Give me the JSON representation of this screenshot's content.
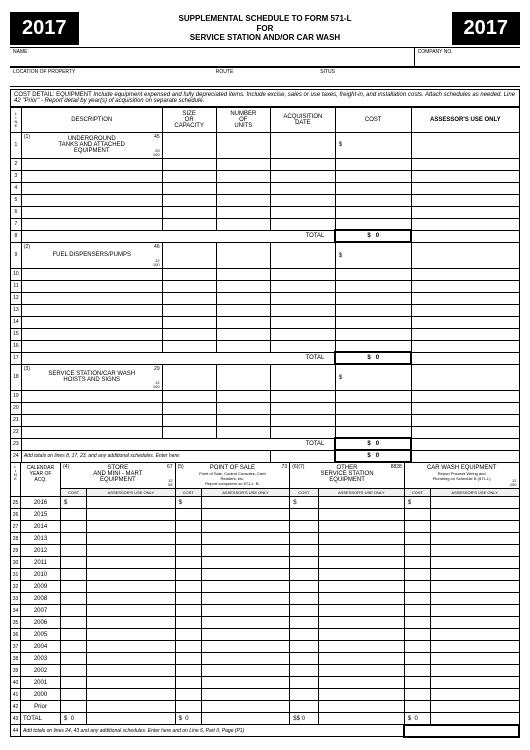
{
  "year": "2017",
  "title_l1": "SUPPLEMENTAL SCHEDULE TO FORM 571-L",
  "title_l2": "FOR",
  "title_l3": "SERVICE STATION AND/OR CAR WASH",
  "labels": {
    "name": "NAME",
    "company_no": "COMPANY NO.",
    "location": "LOCATION OF PROPERTY",
    "route": "ROUTE",
    "situs": "SITUS"
  },
  "cost_detail": {
    "lead": "COST DETAIL: EQUIPMENT",
    "body": "Include equipment expensed and fully depreciated items.  Include excise, sales or use taxes, freight-in, and installation costs.  Attach schedules as needed.  Line 42 \"Prior\" - Report detail by year(s) of acquisition on separate schedule."
  },
  "hdr": {
    "line": "L\nI\nN\nE",
    "desc": "DESCRIPTION",
    "size": "SIZE\nOR\nCAPACITY",
    "units": "NUMBER\nOF\nUNITS",
    "date": "ACQUISITION\nDATE",
    "cost": "COST",
    "assessor": "ASSESSOR'S USE ONLY"
  },
  "sec1": {
    "r1": {
      "num": "1",
      "sup": "(1)",
      "code_t": "45",
      "desc": "UNDERGROUND\nTANKS AND ATTACHED\nEQUIPMENT",
      "code_b1": "25",
      "code_b2": "100"
    },
    "r9": {
      "num": "9",
      "sup": "(2)",
      "code_t": "46",
      "desc": "FUEL DISPENSERS/PUMPS",
      "code_b1": "12",
      "code_b2": "100"
    },
    "r18": {
      "num": "18",
      "sup": "(3)",
      "code_t": "29",
      "desc": "SERVICE STATION/CAR WASH\nHOISTS AND SIGNS",
      "code_b1": "12",
      "code_b2": "100"
    },
    "total": "TOTAL",
    "zero": "0",
    "line24": "Add totals on lines 8, 17, 23, and any additional schedules.   Enter here:",
    "rows_a": [
      "2",
      "3",
      "4",
      "5",
      "6",
      "7"
    ],
    "rows_b": [
      "10",
      "11",
      "12",
      "13",
      "14",
      "15",
      "16"
    ],
    "rows_c": [
      "19",
      "20",
      "21",
      "22"
    ],
    "total_lines": {
      "a": "8",
      "b": "17",
      "c": "23"
    }
  },
  "sec2": {
    "cal_hdr": "CALENDAR\nYEAR OF\nACQ.",
    "c4": {
      "sup": "(4)",
      "code_t": "67",
      "title": "STORE\nAND MINI - MART\nEQUIPMENT",
      "code_b1": "12",
      "code_b2": "55"
    },
    "c5": {
      "sup": "(5)",
      "code_t": "73",
      "title": "POINT OF SALE",
      "sub": "Point of Sale, Control Consoles, Card\nReaders, etc.\nReport computers on 571-L  B.",
      "code_b1": "UNT",
      "code_b2": "0"
    },
    "c6": {
      "sup": "(6)(7)",
      "code_t": "8828",
      "title": "OTHER\nSERVICE STATION\nEQUIPMENT"
    },
    "c7": {
      "title": "CAR WASH EQUIPMENT",
      "sub": "Report Process Wiring and\nPlumbing on Schedule B (571-L)",
      "code_b1": "12",
      "code_b2": "100"
    },
    "sub_hdr": {
      "cost": "COST",
      "assessor": "ASSESSOR'S USE ONLY"
    },
    "years": [
      "2016",
      "2015",
      "2014",
      "2013",
      "2012",
      "2011",
      "2010",
      "2009",
      "2008",
      "2007",
      "2006",
      "2005",
      "2004",
      "2003",
      "2002",
      "2001",
      "2000",
      "Prior"
    ],
    "year_lines": [
      "25",
      "26",
      "27",
      "28",
      "29",
      "30",
      "31",
      "32",
      "33",
      "34",
      "35",
      "36",
      "37",
      "38",
      "39",
      "40",
      "41",
      "42"
    ],
    "total_line": "43",
    "total": "TOTAL",
    "zero": "0",
    "line44": "44",
    "footer": "Add totals on lines 24, 43 and any additional schedules.   Enter here and on Line 6, Part II, Page (P1)"
  },
  "dollar": "$"
}
